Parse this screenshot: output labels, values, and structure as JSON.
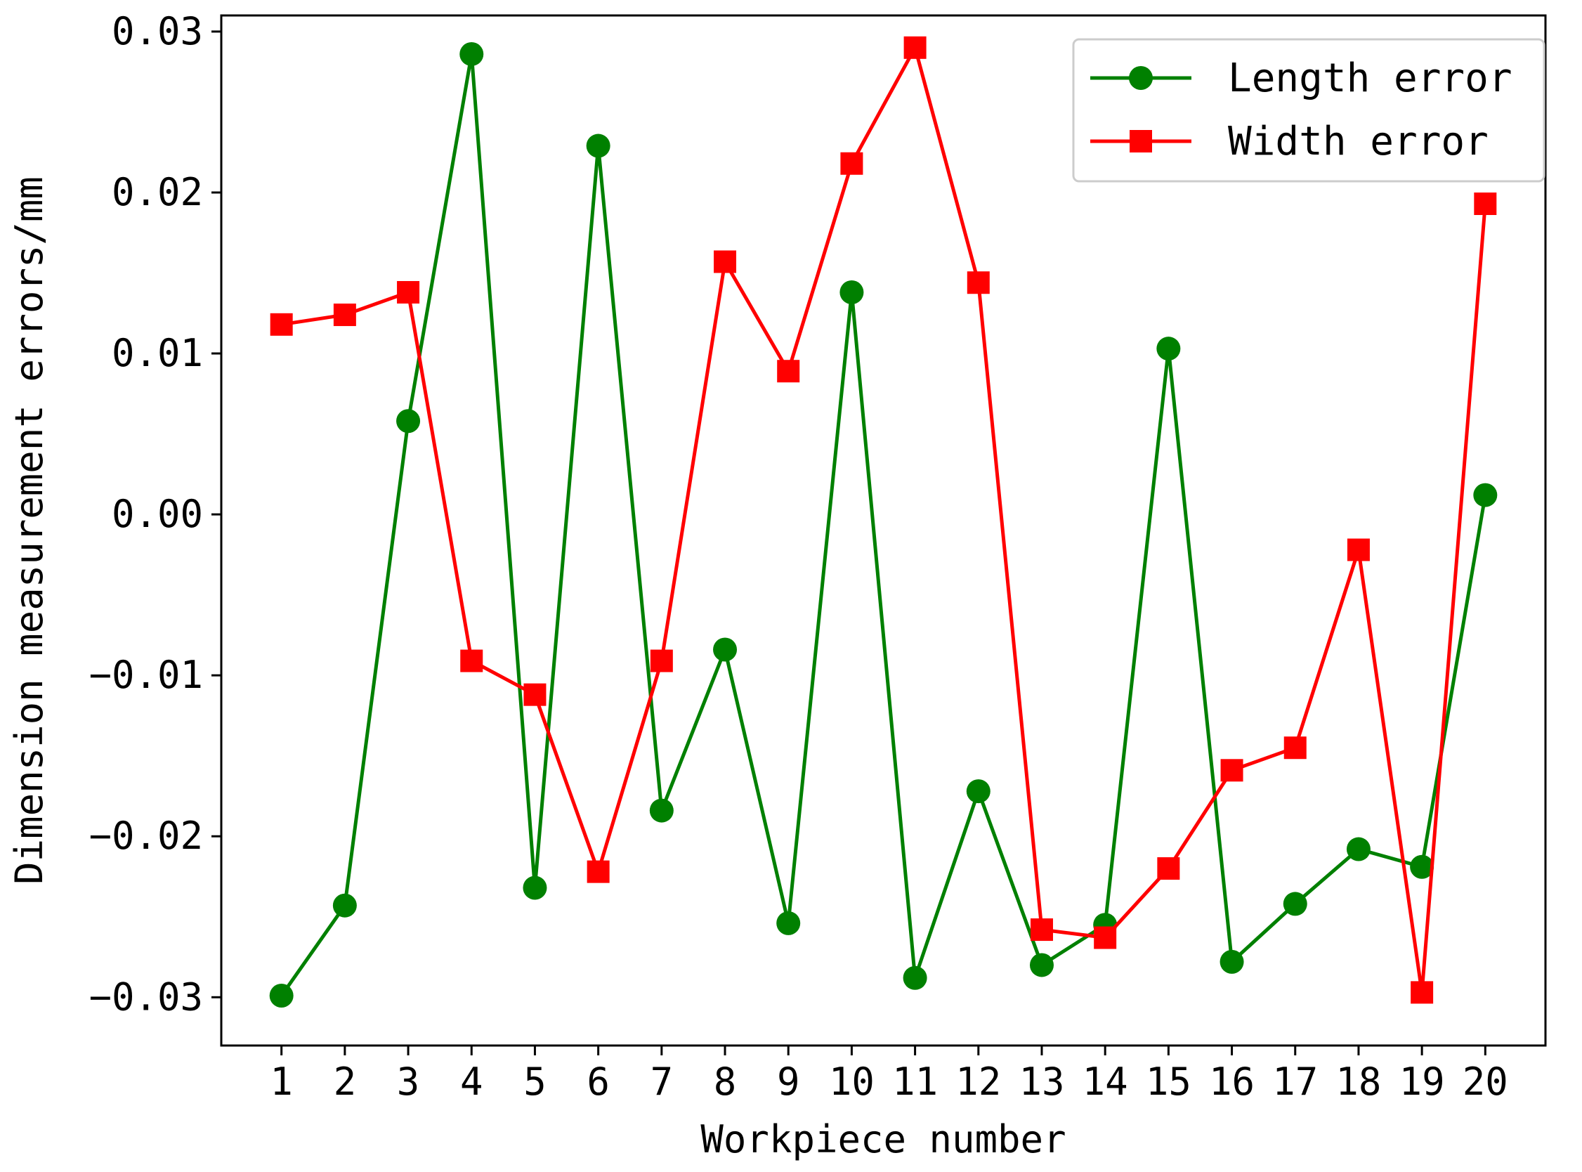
{
  "chart_data": {
    "type": "line",
    "title": "",
    "xlabel": "Workpiece number",
    "ylabel": "Dimension measurement errors/mm",
    "x": [
      1,
      2,
      3,
      4,
      5,
      6,
      7,
      8,
      9,
      10,
      11,
      12,
      13,
      14,
      15,
      16,
      17,
      18,
      19,
      20
    ],
    "xtick_labels": [
      "1",
      "2",
      "3",
      "4",
      "5",
      "6",
      "7",
      "8",
      "9",
      "10",
      "11",
      "12",
      "13",
      "14",
      "15",
      "16",
      "17",
      "18",
      "19",
      "20"
    ],
    "ylim": [
      -0.033,
      0.031
    ],
    "yticks": [
      -0.03,
      -0.02,
      -0.01,
      0.0,
      0.01,
      0.02,
      0.03
    ],
    "ytick_labels": [
      "−0.03",
      "−0.02",
      "−0.01",
      "0.00",
      "0.01",
      "0.02",
      "0.03"
    ],
    "grid": false,
    "legend_position": "top-right",
    "series": [
      {
        "name": "Length error",
        "color": "#008000",
        "marker": "circle",
        "values": [
          -0.0299,
          -0.0243,
          0.0058,
          0.0286,
          -0.0232,
          0.0229,
          -0.0184,
          -0.0084,
          -0.0254,
          0.0138,
          -0.0288,
          -0.0172,
          -0.028,
          -0.0255,
          0.0103,
          -0.0278,
          -0.0242,
          -0.0208,
          -0.0219,
          0.0012
        ]
      },
      {
        "name": "Width error",
        "color": "#ff0000",
        "marker": "square",
        "values": [
          0.0118,
          0.0124,
          0.0138,
          -0.0091,
          -0.0112,
          -0.0222,
          -0.0091,
          0.0157,
          0.0089,
          0.0218,
          0.029,
          0.0144,
          -0.0258,
          -0.0263,
          -0.022,
          -0.0159,
          -0.0145,
          -0.0022,
          -0.0297,
          0.0193
        ]
      }
    ]
  }
}
